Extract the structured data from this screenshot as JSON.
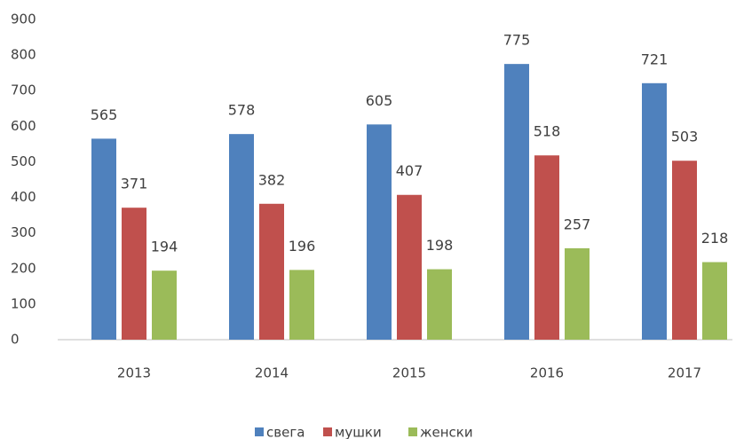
{
  "chart_data": {
    "type": "bar",
    "categories": [
      "2013",
      "2014",
      "2015",
      "2016",
      "2017"
    ],
    "series": [
      {
        "name": "свега",
        "color": "#4f81bd",
        "values": [
          565,
          578,
          605,
          775,
          721
        ]
      },
      {
        "name": "мушки",
        "color": "#c0504d",
        "values": [
          371,
          382,
          407,
          518,
          503
        ]
      },
      {
        "name": "женски",
        "color": "#9bbb59",
        "values": [
          194,
          196,
          198,
          257,
          218
        ]
      }
    ],
    "ylim": [
      0,
      900
    ],
    "yticks": [
      0,
      100,
      200,
      300,
      400,
      500,
      600,
      700,
      800,
      900
    ],
    "grid": false,
    "legend": "bottom"
  }
}
